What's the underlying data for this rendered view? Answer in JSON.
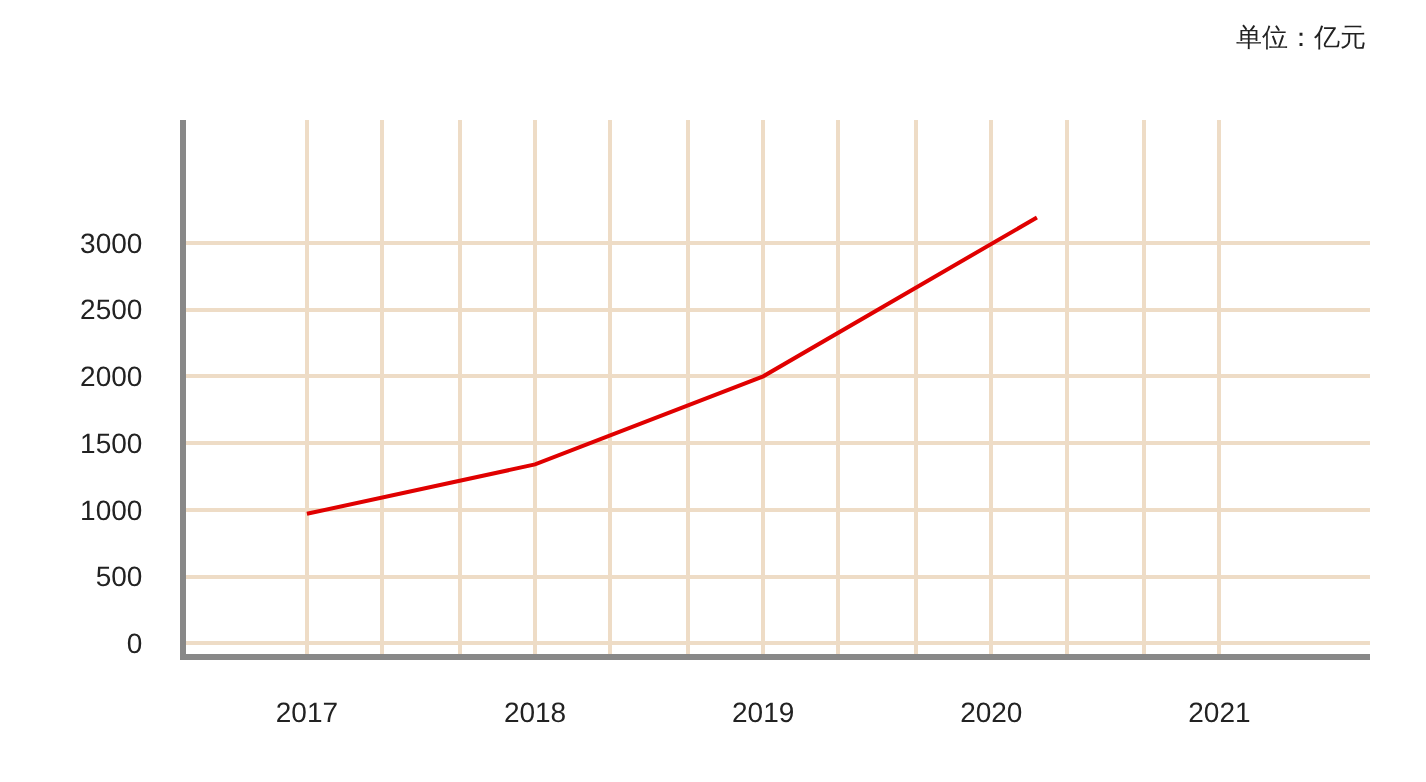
{
  "chart_data": {
    "type": "line",
    "annotations": [
      "单位：亿元"
    ],
    "x": [
      2017,
      2018,
      2019,
      2020.2
    ],
    "series": [
      {
        "color": "#e00000",
        "values": [
          970,
          1340,
          2000,
          3190
        ]
      }
    ],
    "xlim": [
      2016.47,
      2021.66
    ],
    "ylim": [
      -80,
      3920
    ],
    "xticks": [
      2017,
      {
        "value": 2017.33,
        "label": null
      },
      {
        "value": 2017.67,
        "label": null
      },
      2018,
      {
        "value": 2018.33,
        "label": null
      },
      {
        "value": 2018.67,
        "label": null
      },
      2019,
      {
        "value": 2019.33,
        "label": null
      },
      {
        "value": 2019.67,
        "label": null
      },
      2020,
      {
        "value": 2020.33,
        "label": null
      },
      {
        "value": 2020.67,
        "label": null
      },
      2021
    ],
    "yticks": [
      0,
      500,
      1000,
      1500,
      2000,
      2500,
      3000
    ],
    "grid": true,
    "marker": "none",
    "line_style": "solid"
  }
}
